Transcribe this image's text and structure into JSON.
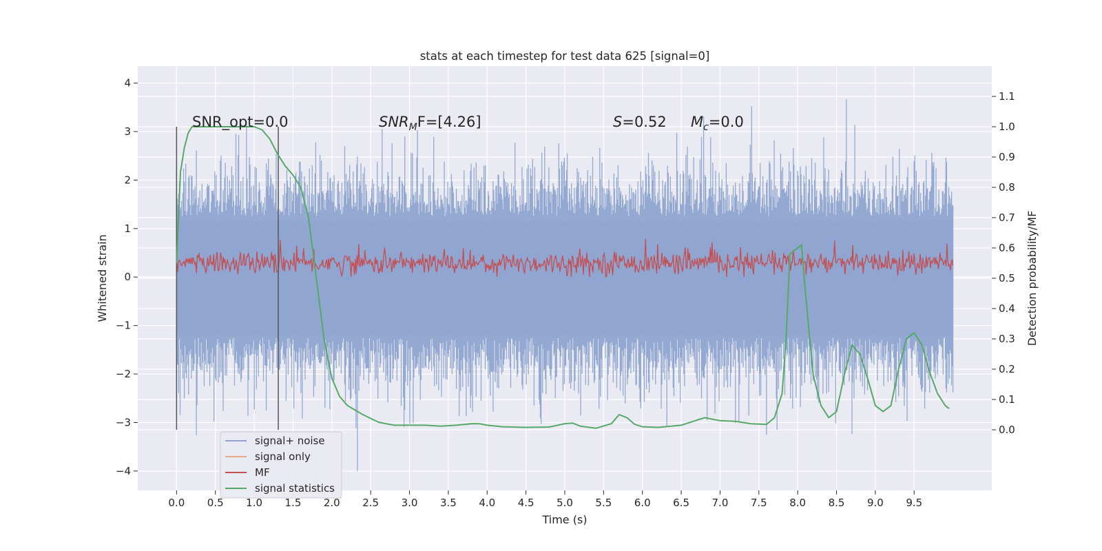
{
  "chart_data": {
    "type": "line",
    "title": "stats at each timestep for test data 625 [signal=0]",
    "xlabel": "Time (s)",
    "ylabel_left": "Whitened strain",
    "ylabel_right": "Detection probability/MF",
    "xlim": [
      -0.5,
      10.5
    ],
    "ylim_left": [
      -4.4,
      4.35
    ],
    "ylim_right": [
      -0.2,
      1.2
    ],
    "x_ticks": [
      "0.0",
      "0.5",
      "1.0",
      "1.5",
      "2.0",
      "2.5",
      "3.0",
      "3.5",
      "4.0",
      "4.5",
      "5.0",
      "5.5",
      "6.0",
      "6.5",
      "7.0",
      "7.5",
      "8.0",
      "8.5",
      "9.0",
      "9.5"
    ],
    "y_left_ticks": [
      "4",
      "3",
      "2",
      "1",
      "0",
      "−1",
      "−2",
      "−3",
      "−4"
    ],
    "y_right_ticks": [
      "1.1",
      "1.0",
      "0.9",
      "0.8",
      "0.7",
      "0.6",
      "0.5",
      "0.4",
      "0.3",
      "0.2",
      "0.1",
      "0.0"
    ],
    "grid": true,
    "legend_position": "lower-left",
    "annotations": {
      "snr_opt": "SNR_opt=0.0",
      "snr_mf_italic": "SNR",
      "snr_mf_sub": "M",
      "snr_mf_tail": "F=[4.26]",
      "s_italic": "S",
      "s_tail": "=0.52",
      "mc_italic": "M",
      "mc_sub": "c",
      "mc_tail": "=0.0"
    },
    "vertical_lines_x": [
      0.0,
      1.31
    ],
    "series": [
      {
        "name": "signal+ noise",
        "color": "#8fa5d0",
        "description_value": "noise band",
        "x_range": [
          0.0,
          10.0
        ],
        "envelope_upper": 2.2,
        "envelope_lower": -2.3,
        "peak_upper": 4.0,
        "peak_lower": -4.05
      },
      {
        "name": "signal only",
        "color": "#e8a98a",
        "values": []
      },
      {
        "name": "MF",
        "color": "#c44e52",
        "x_range": [
          0.0,
          10.0
        ],
        "low": 0.5,
        "high": 0.6,
        "peak": 0.63
      },
      {
        "name": "signal statistics",
        "color": "#55a868",
        "x": [
          0.0,
          0.05,
          0.1,
          0.15,
          0.2,
          0.3,
          0.5,
          0.7,
          0.9,
          1.0,
          1.1,
          1.2,
          1.3,
          1.4,
          1.5,
          1.6,
          1.7,
          1.8,
          1.9,
          2.0,
          2.1,
          2.2,
          2.4,
          2.6,
          2.8,
          3.0,
          3.2,
          3.4,
          3.6,
          3.8,
          3.9,
          4.0,
          4.2,
          4.5,
          4.8,
          5.0,
          5.1,
          5.2,
          5.4,
          5.6,
          5.7,
          5.8,
          5.9,
          6.0,
          6.2,
          6.5,
          6.8,
          7.0,
          7.2,
          7.4,
          7.6,
          7.7,
          7.8,
          7.85,
          7.9,
          8.0,
          8.05,
          8.1,
          8.2,
          8.3,
          8.4,
          8.5,
          8.6,
          8.7,
          8.8,
          8.9,
          9.0,
          9.1,
          9.2,
          9.3,
          9.4,
          9.5,
          9.6,
          9.7,
          9.8,
          9.9,
          9.95
        ],
        "values": [
          0.55,
          0.85,
          0.93,
          0.98,
          1.0,
          1.0,
          1.0,
          1.0,
          1.0,
          1.0,
          0.99,
          0.96,
          0.91,
          0.87,
          0.84,
          0.8,
          0.7,
          0.5,
          0.3,
          0.17,
          0.11,
          0.08,
          0.05,
          0.025,
          0.015,
          0.015,
          0.015,
          0.012,
          0.015,
          0.02,
          0.02,
          0.015,
          0.01,
          0.008,
          0.009,
          0.02,
          0.022,
          0.012,
          0.005,
          0.02,
          0.05,
          0.04,
          0.018,
          0.01,
          0.008,
          0.015,
          0.04,
          0.03,
          0.028,
          0.02,
          0.018,
          0.04,
          0.12,
          0.3,
          0.58,
          0.6,
          0.61,
          0.45,
          0.18,
          0.08,
          0.04,
          0.06,
          0.18,
          0.28,
          0.25,
          0.17,
          0.08,
          0.06,
          0.08,
          0.2,
          0.3,
          0.32,
          0.28,
          0.19,
          0.12,
          0.08,
          0.07
        ]
      }
    ]
  }
}
